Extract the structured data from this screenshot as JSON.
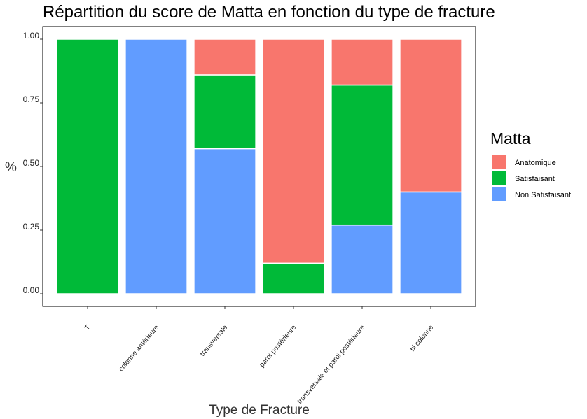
{
  "chart_data": {
    "type": "bar",
    "stacked": true,
    "title": "Répartition du score de Matta en fonction du type de fracture",
    "xlabel": "Type de Fracture",
    "ylabel": "%",
    "ylim": [
      0,
      1
    ],
    "yticks": [
      "0.00",
      "0.25",
      "0.50",
      "0.75",
      "1.00"
    ],
    "categories": [
      "T",
      "colonne antérieure",
      "transversale",
      "paroi postérieure",
      "transversale et paroi postérieure",
      "bi colonne"
    ],
    "series": [
      {
        "name": "Anatomique",
        "color": "#F8766D",
        "values": [
          0,
          0,
          0.14,
          0.88,
          0.18,
          0.6
        ]
      },
      {
        "name": "Satisfaisant",
        "color": "#00BA38",
        "values": [
          1.0,
          0,
          0.29,
          0.12,
          0.55,
          0
        ]
      },
      {
        "name": "Non Satisfaisant",
        "color": "#619CFF",
        "values": [
          0,
          1.0,
          0.57,
          0,
          0.27,
          0.4
        ]
      }
    ],
    "legend": {
      "title": "Matta",
      "position": "right"
    },
    "grid": false
  }
}
